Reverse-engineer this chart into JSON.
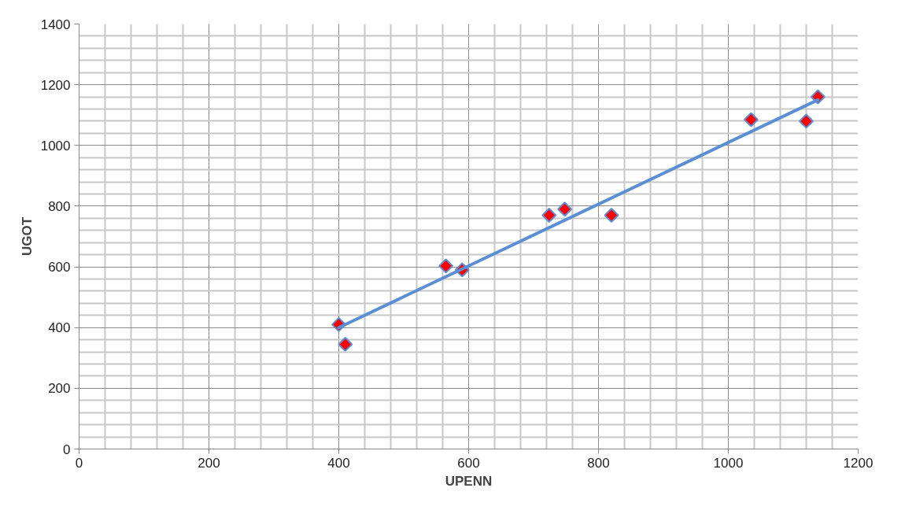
{
  "chart_data": {
    "type": "scatter",
    "xlabel": "UPENN",
    "ylabel": "UGOT",
    "xlim": [
      0,
      1200
    ],
    "ylim": [
      0,
      1400
    ],
    "xticks": [
      0,
      200,
      400,
      600,
      800,
      1000,
      1200
    ],
    "yticks": [
      0,
      200,
      400,
      600,
      800,
      1000,
      1200,
      1400
    ],
    "grid": true,
    "marker": "diamond",
    "series": [
      {
        "color": "#ff0000",
        "x": [
          400,
          410,
          565,
          590,
          724,
          748,
          820,
          1035,
          1120,
          1138
        ],
        "values": [
          410,
          345,
          603,
          590,
          770,
          790,
          770,
          1085,
          1080,
          1160
        ]
      },
      {
        "type": "line",
        "color": "#5b8fd4",
        "marker": "none",
        "x": [
          400,
          1138
        ],
        "values": [
          400,
          1150
        ]
      }
    ]
  }
}
